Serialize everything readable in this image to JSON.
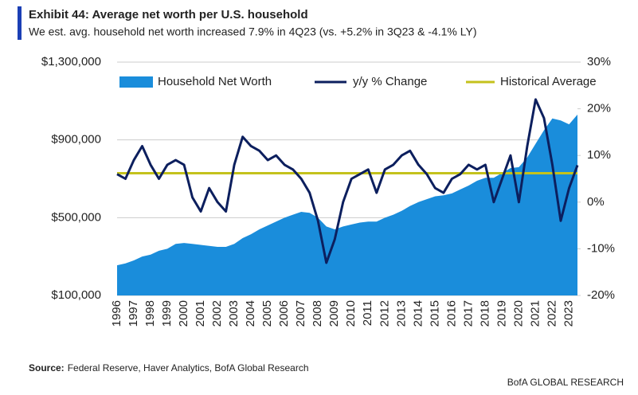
{
  "chart_data": {
    "type": "area_line",
    "title": "Exhibit 44: Average net worth per U.S. household",
    "subtitle": "We est. avg. household net worth increased 7.9% in 4Q23 (vs. +5.2% in 3Q23 & -4.1% LY)",
    "source_label": "Source:",
    "source": "Federal Reserve, Haver Analytics, BofA Global Research",
    "footer": "BofA GLOBAL RESEARCH",
    "categories": [
      "1996",
      null,
      "1997",
      null,
      "1998",
      null,
      "1999",
      null,
      "2000",
      null,
      "2001",
      null,
      "2002",
      null,
      "2003",
      null,
      "2004",
      null,
      "2005",
      null,
      "2006",
      null,
      "2007",
      null,
      "2008",
      null,
      "2009",
      null,
      "2010",
      null,
      "2011",
      null,
      "2012",
      null,
      "2013",
      null,
      "2014",
      null,
      "2015",
      null,
      "2016",
      null,
      "2017",
      null,
      "2018",
      null,
      "2019",
      null,
      "2020",
      null,
      "2021",
      null,
      "2022",
      null,
      "2023",
      null
    ],
    "series": [
      {
        "name": "Household Net Worth",
        "color": "#1a8ddb",
        "kind": "area",
        "axis": "y",
        "values": [
          255000,
          265000,
          280000,
          300000,
          310000,
          330000,
          340000,
          365000,
          370000,
          365000,
          360000,
          355000,
          350000,
          350000,
          365000,
          395000,
          415000,
          440000,
          460000,
          480000,
          500000,
          515000,
          530000,
          525000,
          500000,
          455000,
          440000,
          455000,
          465000,
          475000,
          480000,
          480000,
          500000,
          515000,
          535000,
          560000,
          580000,
          595000,
          610000,
          615000,
          625000,
          645000,
          665000,
          690000,
          705000,
          705000,
          730000,
          755000,
          760000,
          810000,
          880000,
          950000,
          1010000,
          1000000,
          980000,
          1030000
        ]
      },
      {
        "name": "y/y % Change",
        "color": "#0c1f5e",
        "kind": "line",
        "axis": "y2",
        "values": [
          6,
          5,
          9,
          12,
          8,
          5,
          8,
          9,
          8,
          1,
          -2,
          3,
          0,
          -2,
          8,
          14,
          12,
          11,
          9,
          10,
          8,
          7,
          5,
          2,
          -4,
          -13,
          -8,
          0,
          5,
          6,
          7,
          2,
          7,
          8,
          10,
          11,
          8,
          6,
          3,
          2,
          5,
          6,
          8,
          7,
          8,
          0,
          5,
          10,
          0,
          12,
          22,
          18,
          8,
          -4,
          3,
          7.9
        ]
      }
    ],
    "reference_lines": [
      {
        "name": "Historical Average",
        "value": 6.2,
        "axis": "y2",
        "color": "#c4c21c"
      }
    ],
    "ylim": [
      100000,
      1300000
    ],
    "yticks": [
      {
        "value": 100000,
        "label": "$100,000"
      },
      {
        "value": 500000,
        "label": "$500,000"
      },
      {
        "value": 900000,
        "label": "$900,000"
      },
      {
        "value": 1300000,
        "label": "$1,300,000"
      }
    ],
    "y2lim": [
      -20,
      30
    ],
    "y2ticks": [
      {
        "value": -20,
        "label": "-20%"
      },
      {
        "value": -10,
        "label": "-10%"
      },
      {
        "value": 0,
        "label": "0%"
      },
      {
        "value": 10,
        "label": "10%"
      },
      {
        "value": 20,
        "label": "20%"
      },
      {
        "value": 30,
        "label": "30%"
      }
    ],
    "grid": true
  }
}
